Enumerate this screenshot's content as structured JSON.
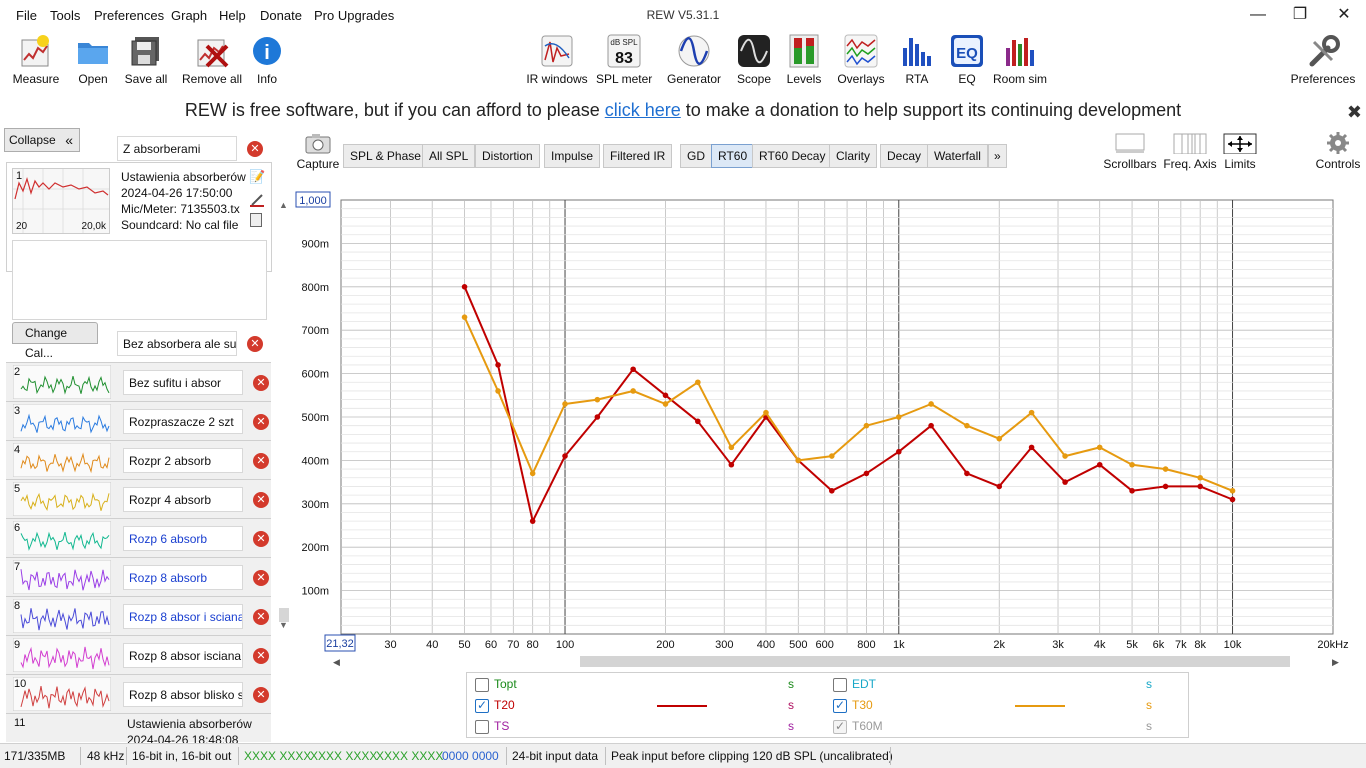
{
  "menu": [
    "File",
    "Tools",
    "Preferences",
    "Graph",
    "Help",
    "Donate",
    "Pro Upgrades"
  ],
  "window_title": "REW V5.31.1",
  "toolbar_left": [
    "Measure",
    "Open",
    "Save all",
    "Remove all",
    "Info"
  ],
  "toolbar_center": [
    "IR windows",
    "SPL meter",
    "Generator",
    "Scope",
    "Levels",
    "Overlays",
    "RTA",
    "EQ",
    "Room sim"
  ],
  "spl_meter_icon": {
    "top": "dB SPL",
    "value": "83"
  },
  "eq_icon_text": "EQ",
  "toolbar_right": "Preferences",
  "banner": {
    "before": "REW is free software, but if you can afford to please ",
    "link": "click here",
    "after": " to make a donation to help support its continuing development"
  },
  "left_panel": {
    "collapse_label": "Collapse",
    "collapse_glyph": "«",
    "selected": {
      "number": "1",
      "name": "Z absorberami",
      "info": [
        "Ustawienia absorberów",
        "2024-04-26 17:50:00",
        "Mic/Meter: 7135503.tx",
        "Soundcard: No cal file"
      ],
      "axis_min": "20",
      "axis_max": "20,0k"
    },
    "change_cal_label": "Change Cal...",
    "selected_rename": "Bez absorbera  ale su",
    "measurements": [
      {
        "num": "2",
        "name": "Bez sufitu i absor",
        "color": "#1f8f2f",
        "name_color": "#111"
      },
      {
        "num": "3",
        "name": "Rozpraszacze 2 szt",
        "color": "#2a7be0",
        "name_color": "#111"
      },
      {
        "num": "4",
        "name": "Rozpr 2 absorb",
        "color": "#e08a1a",
        "name_color": "#111"
      },
      {
        "num": "5",
        "name": "Rozpr 4 absorb",
        "color": "#d8b01a",
        "name_color": "#111"
      },
      {
        "num": "6",
        "name": "Rozp 6 absorb",
        "color": "#12b890",
        "name_color": "#1a3fd0"
      },
      {
        "num": "7",
        "name": "Rozp 8 absorb",
        "color": "#9a3ee6",
        "name_color": "#1a3fd0"
      },
      {
        "num": "8",
        "name": "Rozp 8 absor i sciana",
        "color": "#4a4ad8",
        "name_color": "#1a3fd0"
      },
      {
        "num": "9",
        "name": "Rozp 8 absor  isciana",
        "color": "#d23ed0",
        "name_color": "#111"
      },
      {
        "num": "10",
        "name": "Rozp 8 absor blisko s",
        "color": "#d04040",
        "name_color": "#111"
      }
    ],
    "last": {
      "num": "11",
      "info": [
        "Ustawienia absorberów",
        "2024-04-26 18:48:08"
      ]
    }
  },
  "plot_toolbar": {
    "capture_label": "Capture",
    "tabs": [
      "SPL & Phase",
      "All SPL",
      "Distortion",
      "Impulse",
      "Filtered IR",
      "GD",
      "RT60",
      "RT60 Decay",
      "Clarity",
      "Decay",
      "Waterfall"
    ],
    "active_tab": "RT60",
    "more_glyph": "»",
    "controls": [
      "Scrollbars",
      "Freq. Axis",
      "Limits",
      "Controls"
    ]
  },
  "axis": {
    "y_top_box": "1,000",
    "y_ticks": [
      "900m",
      "800m",
      "700m",
      "600m",
      "500m",
      "400m",
      "300m",
      "200m",
      "100m"
    ],
    "x_left_box": "21,32",
    "x_ticks": [
      "30",
      "40",
      "50",
      "60",
      "70",
      "80",
      "100",
      "200",
      "300",
      "400",
      "500",
      "600",
      "800",
      "1k",
      "2k",
      "3k",
      "4k",
      "5k",
      "6k",
      "7k",
      "8k",
      "10k",
      "20kHz"
    ]
  },
  "chart_data": {
    "type": "line",
    "xscale": "log",
    "xlim": [
      21.32,
      20000
    ],
    "ylim": [
      0,
      1.0
    ],
    "grid": true,
    "x": [
      50,
      63,
      80,
      100,
      125,
      160,
      200,
      250,
      315,
      400,
      500,
      630,
      800,
      1000,
      1250,
      1600,
      2000,
      2500,
      3150,
      4000,
      5000,
      6300,
      8000,
      10000
    ],
    "series": [
      {
        "name": "T20",
        "color": "#c00000",
        "values": [
          0.8,
          0.62,
          0.26,
          0.41,
          0.5,
          0.61,
          0.55,
          0.49,
          0.39,
          0.5,
          0.4,
          0.33,
          0.37,
          0.42,
          0.48,
          0.37,
          0.34,
          0.43,
          0.35,
          0.39,
          0.33,
          0.34,
          0.34,
          0.31
        ]
      },
      {
        "name": "T30",
        "color": "#e69a10",
        "values": [
          0.73,
          0.56,
          0.37,
          0.53,
          0.54,
          0.56,
          0.53,
          0.58,
          0.43,
          0.51,
          0.4,
          0.41,
          0.48,
          0.5,
          0.53,
          0.48,
          0.45,
          0.51,
          0.41,
          0.43,
          0.39,
          0.38,
          0.36,
          0.33
        ]
      }
    ]
  },
  "legend": [
    {
      "label": "Topt",
      "checked": false,
      "color": "#1a8a1a",
      "unit": "s",
      "unit_color": "#1a8a1a",
      "line": false
    },
    {
      "label": "EDT",
      "checked": false,
      "color": "#18a8c8",
      "unit": "s",
      "unit_color": "#18a8c8",
      "line": false
    },
    {
      "label": "T20",
      "checked": true,
      "color": "#c00000",
      "unit": "s",
      "unit_color": "#b01060",
      "line": true
    },
    {
      "label": "T30",
      "checked": true,
      "color": "#e69a10",
      "unit": "s",
      "unit_color": "#e69a10",
      "line": true
    },
    {
      "label": "TS",
      "checked": false,
      "color": "#a020a0",
      "unit": "s",
      "unit_color": "#a020a0",
      "line": false
    },
    {
      "label": "T60M",
      "checked": true,
      "disabled": true,
      "color": "#9a9a9a",
      "unit": "s",
      "unit_color": "#9a9a9a",
      "line": false
    }
  ],
  "status": {
    "memory": "171/335MB",
    "rate": "48 kHz",
    "bits": "16-bit in, 16-bit out",
    "codes_green": [
      "XXXX XXXX",
      "XXXX XXXX",
      "XXXX XXXX"
    ],
    "code_blue": "0000 0000",
    "input": "24-bit input data",
    "peak": "Peak input before clipping 120 dB SPL (uncalibrated)"
  }
}
